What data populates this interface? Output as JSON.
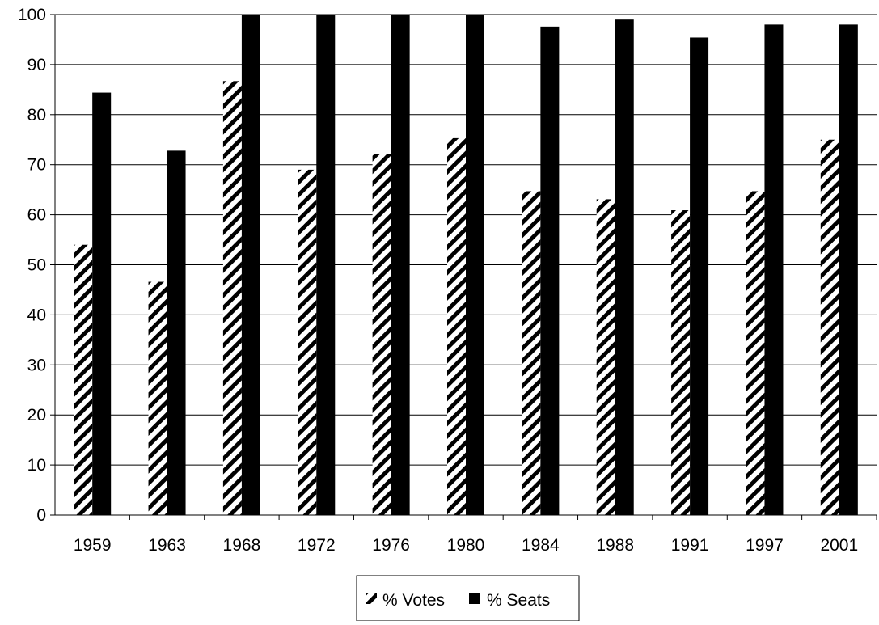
{
  "chart_data": {
    "type": "bar",
    "title": "",
    "xlabel": "",
    "ylabel": "",
    "categories": [
      "1959",
      "1963",
      "1968",
      "1972",
      "1976",
      "1980",
      "1984",
      "1988",
      "1991",
      "1997",
      "2001"
    ],
    "series": [
      {
        "name": "% Votes",
        "fill": "hatched",
        "color": "#000000",
        "values": [
          54,
          46.6,
          86.7,
          69,
          72.2,
          75.3,
          64.7,
          63.1,
          60.9,
          64.7,
          75
        ]
      },
      {
        "name": "% Seats",
        "fill": "solid",
        "color": "#000000",
        "values": [
          84.4,
          72.8,
          100,
          100,
          100,
          100,
          97.6,
          99,
          95.4,
          98,
          98
        ]
      }
    ],
    "ylim": [
      0,
      100
    ],
    "yticks": [
      0,
      10,
      20,
      30,
      40,
      50,
      60,
      70,
      80,
      90,
      100
    ],
    "grid": true,
    "legend": "bottom-center"
  }
}
